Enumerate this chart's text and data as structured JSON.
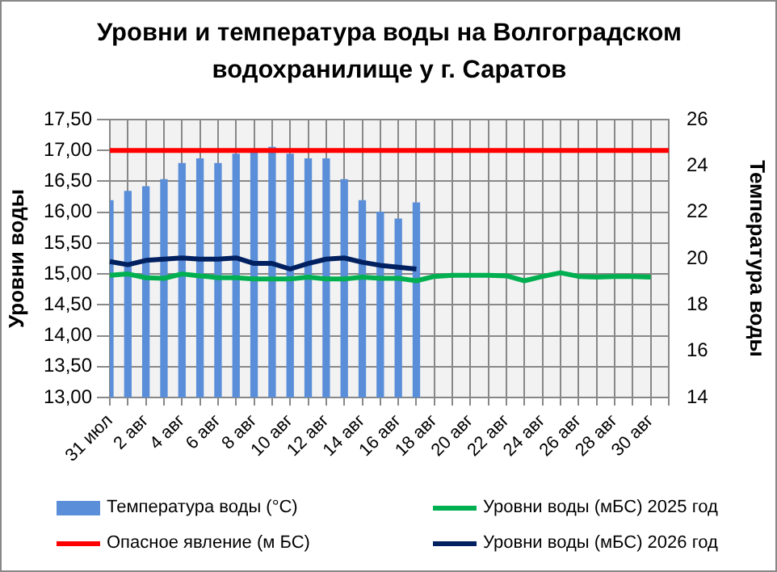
{
  "chart_data": {
    "type": "bar",
    "title": "Уровни и температура воды на Волгоградском водохранилище у г. Саратов",
    "ylabel": "Уровни воды",
    "y2label": "Температура воды",
    "categories": [
      "31 июл",
      null,
      "2 авг",
      null,
      "4 авг",
      null,
      "6 авг",
      null,
      "8 авг",
      null,
      "10 авг",
      null,
      "12 авг",
      null,
      "14 авг",
      null,
      "16 авг",
      null,
      "18 авг",
      null,
      "20 авг",
      null,
      "22 авг",
      null,
      "24 авг",
      null,
      "26 авг",
      null,
      "28 авг",
      null,
      "30 авг",
      null
    ],
    "series": [
      {
        "name": "Температура воды (°С)",
        "axis": "y2",
        "color": "#5a8ed8",
        "values": [
          22.5,
          22.9,
          23.1,
          23.4,
          24.1,
          24.3,
          24.1,
          24.5,
          24.6,
          24.8,
          24.5,
          24.3,
          24.3,
          23.4,
          22.5,
          22.0,
          21.7,
          22.4,
          null,
          null,
          null,
          null,
          null,
          null,
          null,
          null,
          null,
          null,
          null,
          null,
          null,
          null
        ]
      },
      {
        "name": "Уровни воды (мБС) 2025 год",
        "type": "line",
        "color": "#00b050",
        "values": [
          14.98,
          15.0,
          14.94,
          14.93,
          15.0,
          14.97,
          14.94,
          14.94,
          14.92,
          14.92,
          14.92,
          14.95,
          14.92,
          14.92,
          14.95,
          14.93,
          14.93,
          14.89,
          14.96,
          14.98,
          14.98,
          14.98,
          14.97,
          14.89,
          14.96,
          15.02,
          14.96,
          14.95,
          14.96,
          14.96,
          14.95,
          null
        ]
      },
      {
        "name": "Опасное явление (м БС)",
        "type": "line",
        "color": "#ff0000",
        "values": [
          17,
          17,
          17,
          17,
          17,
          17,
          17,
          17,
          17,
          17,
          17,
          17,
          17,
          17,
          17,
          17,
          17,
          17,
          17,
          17,
          17,
          17,
          17,
          17,
          17,
          17,
          17,
          17,
          17,
          17,
          17,
          17
        ]
      },
      {
        "name": "Уровни воды (мБС) 2026 год",
        "type": "line",
        "color": "#002060",
        "values": [
          15.2,
          15.15,
          15.22,
          15.24,
          15.26,
          15.24,
          15.24,
          15.26,
          15.17,
          15.17,
          15.08,
          15.17,
          15.24,
          15.26,
          15.19,
          15.14,
          15.11,
          15.08,
          null,
          null,
          null,
          null,
          null,
          null,
          null,
          null,
          null,
          null,
          null,
          null,
          null,
          null
        ]
      }
    ],
    "ylim": [
      13,
      17.5
    ],
    "yticks": [
      {
        "value": 13,
        "label": "13,00"
      },
      {
        "value": 13.5,
        "label": "13,50"
      },
      {
        "value": 14,
        "label": "14,00"
      },
      {
        "value": 14.5,
        "label": "14,50"
      },
      {
        "value": 15,
        "label": "15,00"
      },
      {
        "value": 15.5,
        "label": "15,50"
      },
      {
        "value": 16,
        "label": "16,00"
      },
      {
        "value": 16.5,
        "label": "16,50"
      },
      {
        "value": 17,
        "label": "17,00"
      },
      {
        "value": 17.5,
        "label": "17,50"
      }
    ],
    "y2lim": [
      14,
      26
    ],
    "y2ticks": [
      14,
      16,
      18,
      20,
      22,
      24,
      26
    ],
    "grid": true,
    "legend": "bottom",
    "marker": "none",
    "line_style": "solid"
  }
}
